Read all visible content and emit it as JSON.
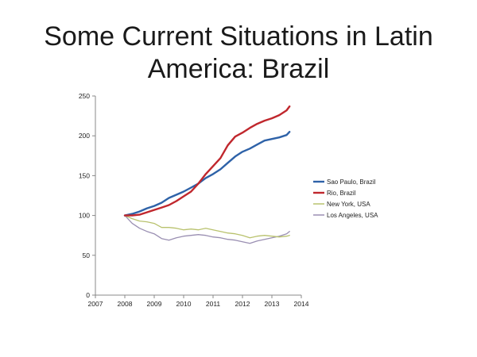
{
  "slide": {
    "title_line1": "Some Current Situations in Latin",
    "title_line2": "America: Brazil"
  },
  "chart_data": {
    "type": "line",
    "title": "",
    "xlabel": "",
    "ylabel": "",
    "xlim": [
      2007,
      2014
    ],
    "ylim": [
      0,
      250
    ],
    "x_ticks": [
      "2007",
      "2008",
      "2009",
      "2010",
      "2011",
      "2012",
      "2013",
      "2014"
    ],
    "y_ticks": [
      "0",
      "50",
      "100",
      "150",
      "200",
      "250"
    ],
    "grid": false,
    "legend_position": "right",
    "series": [
      {
        "name": "Sao Paulo, Brazil",
        "color": "#2e62a8",
        "points": [
          [
            2008.0,
            100
          ],
          [
            2008.25,
            102
          ],
          [
            2008.5,
            105
          ],
          [
            2008.75,
            109
          ],
          [
            2009.0,
            112
          ],
          [
            2009.25,
            116
          ],
          [
            2009.5,
            122
          ],
          [
            2009.75,
            126
          ],
          [
            2010.0,
            130
          ],
          [
            2010.25,
            135
          ],
          [
            2010.5,
            140
          ],
          [
            2010.75,
            147
          ],
          [
            2011.0,
            152
          ],
          [
            2011.25,
            158
          ],
          [
            2011.5,
            166
          ],
          [
            2011.75,
            174
          ],
          [
            2012.0,
            180
          ],
          [
            2012.25,
            184
          ],
          [
            2012.5,
            189
          ],
          [
            2012.75,
            194
          ],
          [
            2013.0,
            196
          ],
          [
            2013.25,
            198
          ],
          [
            2013.5,
            201
          ],
          [
            2013.6,
            205
          ]
        ]
      },
      {
        "name": "Rio, Brazil",
        "color": "#c0272d",
        "points": [
          [
            2008.0,
            100
          ],
          [
            2008.25,
            100
          ],
          [
            2008.5,
            101
          ],
          [
            2008.75,
            104
          ],
          [
            2009.0,
            107
          ],
          [
            2009.25,
            110
          ],
          [
            2009.5,
            113
          ],
          [
            2009.75,
            118
          ],
          [
            2010.0,
            124
          ],
          [
            2010.25,
            130
          ],
          [
            2010.5,
            140
          ],
          [
            2010.75,
            152
          ],
          [
            2011.0,
            162
          ],
          [
            2011.25,
            172
          ],
          [
            2011.5,
            188
          ],
          [
            2011.75,
            199
          ],
          [
            2012.0,
            204
          ],
          [
            2012.25,
            210
          ],
          [
            2012.5,
            215
          ],
          [
            2012.75,
            219
          ],
          [
            2013.0,
            222
          ],
          [
            2013.25,
            226
          ],
          [
            2013.5,
            232
          ],
          [
            2013.6,
            237
          ]
        ]
      },
      {
        "name": "New York, USA",
        "color": "#b9c26e",
        "points": [
          [
            2008.0,
            100
          ],
          [
            2008.25,
            96
          ],
          [
            2008.5,
            93
          ],
          [
            2008.75,
            92
          ],
          [
            2009.0,
            90
          ],
          [
            2009.25,
            85
          ],
          [
            2009.5,
            85
          ],
          [
            2009.75,
            84
          ],
          [
            2010.0,
            82
          ],
          [
            2010.25,
            83
          ],
          [
            2010.5,
            82
          ],
          [
            2010.75,
            84
          ],
          [
            2011.0,
            82
          ],
          [
            2011.25,
            80
          ],
          [
            2011.5,
            78
          ],
          [
            2011.75,
            77
          ],
          [
            2012.0,
            75
          ],
          [
            2012.25,
            72
          ],
          [
            2012.5,
            74
          ],
          [
            2012.75,
            75
          ],
          [
            2013.0,
            74
          ],
          [
            2013.25,
            73
          ],
          [
            2013.5,
            74
          ],
          [
            2013.6,
            75
          ]
        ]
      },
      {
        "name": "Los Angeles, USA",
        "color": "#9a8fb2",
        "points": [
          [
            2008.0,
            100
          ],
          [
            2008.25,
            90
          ],
          [
            2008.5,
            84
          ],
          [
            2008.75,
            80
          ],
          [
            2009.0,
            77
          ],
          [
            2009.25,
            71
          ],
          [
            2009.5,
            69
          ],
          [
            2009.75,
            72
          ],
          [
            2010.0,
            74
          ],
          [
            2010.25,
            75
          ],
          [
            2010.5,
            76
          ],
          [
            2010.75,
            75
          ],
          [
            2011.0,
            73
          ],
          [
            2011.25,
            72
          ],
          [
            2011.5,
            70
          ],
          [
            2011.75,
            69
          ],
          [
            2012.0,
            67
          ],
          [
            2012.25,
            65
          ],
          [
            2012.5,
            68
          ],
          [
            2012.75,
            70
          ],
          [
            2013.0,
            72
          ],
          [
            2013.25,
            74
          ],
          [
            2013.5,
            77
          ],
          [
            2013.6,
            80
          ]
        ]
      }
    ]
  }
}
